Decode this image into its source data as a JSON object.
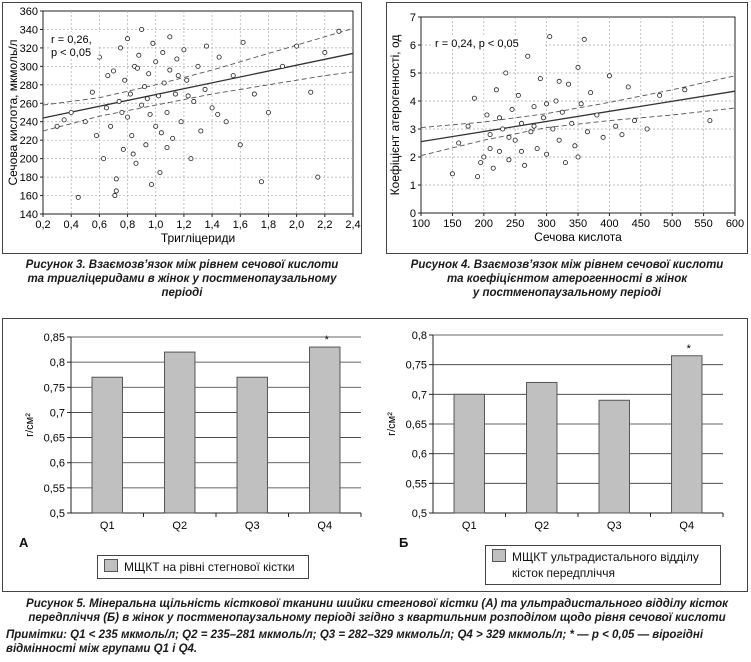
{
  "colors": {
    "bar": "#c0c0c0",
    "bar_border": "#555555",
    "grid": "#aaaaaa",
    "line": "#333333"
  },
  "chart_data": [
    {
      "id": "fig3",
      "type": "scatter",
      "title": "",
      "xlabel": "Тригліцериди",
      "ylabel": "Сечова кислота, мкмоль/л",
      "xlim": [
        0.2,
        2.4
      ],
      "ylim": [
        140,
        360
      ],
      "xticks": [
        "0,2",
        "0,4",
        "0,6",
        "0,8",
        "1,0",
        "1,2",
        "1,4",
        "1,6",
        "1,8",
        "2,0",
        "2,2",
        "2,4"
      ],
      "xtick_values": [
        0.2,
        0.4,
        0.6,
        0.8,
        1.0,
        1.2,
        1.4,
        1.6,
        1.8,
        2.0,
        2.2,
        2.4
      ],
      "yticks": [
        "140",
        "160",
        "180",
        "200",
        "220",
        "240",
        "260",
        "280",
        "300",
        "320",
        "340",
        "360"
      ],
      "ytick_values": [
        140,
        160,
        180,
        200,
        220,
        240,
        260,
        280,
        300,
        320,
        340,
        360
      ],
      "annotation": [
        "r = 0,26,",
        "p < 0,05"
      ],
      "grid": true,
      "regression": {
        "x": [
          0.2,
          2.4
        ],
        "y": [
          244,
          314
        ]
      },
      "ci_upper": {
        "x": [
          0.2,
          0.6,
          1.0,
          1.4,
          1.8,
          2.2,
          2.4
        ],
        "y": [
          258,
          266,
          280,
          296,
          314,
          332,
          341
        ]
      },
      "ci_lower": {
        "x": [
          0.2,
          0.6,
          1.0,
          1.4,
          1.8,
          2.2,
          2.4
        ],
        "y": [
          230,
          246,
          258,
          270,
          280,
          290,
          294
        ]
      },
      "points": [
        [
          0.45,
          158
        ],
        [
          0.5,
          240
        ],
        [
          0.55,
          272
        ],
        [
          0.6,
          310
        ],
        [
          0.63,
          200
        ],
        [
          0.65,
          255
        ],
        [
          0.68,
          235
        ],
        [
          0.7,
          295
        ],
        [
          0.72,
          165
        ],
        [
          0.72,
          178
        ],
        [
          0.74,
          262
        ],
        [
          0.75,
          320
        ],
        [
          0.77,
          210
        ],
        [
          0.78,
          285
        ],
        [
          0.8,
          245
        ],
        [
          0.8,
          330
        ],
        [
          0.82,
          270
        ],
        [
          0.83,
          225
        ],
        [
          0.85,
          300
        ],
        [
          0.86,
          195
        ],
        [
          0.88,
          312
        ],
        [
          0.9,
          258
        ],
        [
          0.9,
          340
        ],
        [
          0.92,
          278
        ],
        [
          0.93,
          215
        ],
        [
          0.95,
          292
        ],
        [
          0.96,
          248
        ],
        [
          0.98,
          325
        ],
        [
          1.0,
          235
        ],
        [
          1.0,
          305
        ],
        [
          1.02,
          268
        ],
        [
          1.03,
          185
        ],
        [
          1.05,
          315
        ],
        [
          1.06,
          282
        ],
        [
          1.08,
          250
        ],
        [
          1.1,
          332
        ],
        [
          1.1,
          296
        ],
        [
          1.12,
          222
        ],
        [
          1.14,
          270
        ],
        [
          1.15,
          308
        ],
        [
          1.18,
          240
        ],
        [
          1.2,
          318
        ],
        [
          1.22,
          285
        ],
        [
          1.25,
          200
        ],
        [
          1.27,
          262
        ],
        [
          1.3,
          300
        ],
        [
          1.32,
          230
        ],
        [
          1.35,
          275
        ],
        [
          1.4,
          255
        ],
        [
          1.45,
          310
        ],
        [
          1.5,
          240
        ],
        [
          1.55,
          290
        ],
        [
          1.6,
          215
        ],
        [
          1.62,
          326
        ],
        [
          1.7,
          270
        ],
        [
          1.75,
          175
        ],
        [
          1.8,
          250
        ],
        [
          1.9,
          300
        ],
        [
          2.0,
          322
        ],
        [
          2.1,
          272
        ],
        [
          2.15,
          180
        ],
        [
          2.2,
          315
        ],
        [
          2.3,
          338
        ],
        [
          0.58,
          225
        ],
        [
          0.66,
          290
        ],
        [
          0.76,
          250
        ],
        [
          0.84,
          205
        ],
        [
          0.94,
          265
        ],
        [
          1.04,
          228
        ],
        [
          1.16,
          290
        ],
        [
          0.35,
          242
        ],
        [
          0.4,
          250
        ],
        [
          0.3,
          235
        ],
        [
          1.36,
          322
        ],
        [
          1.44,
          248
        ],
        [
          0.97,
          172
        ],
        [
          0.71,
          160
        ],
        [
          1.08,
          212
        ],
        [
          0.87,
          298
        ],
        [
          1.23,
          268
        ]
      ]
    },
    {
      "id": "fig4",
      "type": "scatter",
      "title": "",
      "xlabel": "Сечова кислота",
      "ylabel": "Коефіцієнт атерогенності, од",
      "xlim": [
        100,
        600
      ],
      "ylim": [
        0,
        7
      ],
      "xticks": [
        "100",
        "150",
        "200",
        "250",
        "300",
        "350",
        "400",
        "450",
        "500",
        "550",
        "600"
      ],
      "xtick_values": [
        100,
        150,
        200,
        250,
        300,
        350,
        400,
        450,
        500,
        550,
        600
      ],
      "yticks": [
        "0",
        "1",
        "2",
        "3",
        "4",
        "5",
        "6",
        "7"
      ],
      "ytick_values": [
        0,
        1,
        2,
        3,
        4,
        5,
        6,
        7
      ],
      "annotation": [
        "r = 0,24, p < 0,05"
      ],
      "grid": true,
      "regression": {
        "x": [
          100,
          600
        ],
        "y": [
          2.55,
          4.35
        ]
      },
      "ci_upper": {
        "x": [
          100,
          200,
          300,
          400,
          500,
          600
        ],
        "y": [
          3.05,
          3.25,
          3.55,
          3.95,
          4.4,
          4.9
        ]
      },
      "ci_lower": {
        "x": [
          100,
          200,
          300,
          400,
          500,
          600
        ],
        "y": [
          2.05,
          2.6,
          3.05,
          3.3,
          3.5,
          3.75
        ]
      },
      "points": [
        [
          150,
          1.4
        ],
        [
          160,
          2.5
        ],
        [
          175,
          3.1
        ],
        [
          185,
          4.1
        ],
        [
          190,
          1.3
        ],
        [
          200,
          2.0
        ],
        [
          205,
          3.5
        ],
        [
          210,
          2.8
        ],
        [
          215,
          1.6
        ],
        [
          220,
          4.4
        ],
        [
          225,
          2.2
        ],
        [
          230,
          3.0
        ],
        [
          235,
          5.0
        ],
        [
          240,
          1.9
        ],
        [
          245,
          3.7
        ],
        [
          250,
          2.6
        ],
        [
          255,
          4.2
        ],
        [
          260,
          3.2
        ],
        [
          265,
          1.7
        ],
        [
          270,
          5.6
        ],
        [
          275,
          2.9
        ],
        [
          280,
          3.8
        ],
        [
          285,
          2.3
        ],
        [
          290,
          4.8
        ],
        [
          295,
          3.4
        ],
        [
          300,
          2.1
        ],
        [
          305,
          6.3
        ],
        [
          310,
          3.0
        ],
        [
          315,
          4.0
        ],
        [
          320,
          2.6
        ],
        [
          325,
          3.6
        ],
        [
          330,
          1.8
        ],
        [
          335,
          4.6
        ],
        [
          340,
          3.2
        ],
        [
          345,
          2.4
        ],
        [
          350,
          5.2
        ],
        [
          355,
          3.9
        ],
        [
          360,
          6.2
        ],
        [
          365,
          2.9
        ],
        [
          370,
          4.3
        ],
        [
          380,
          3.5
        ],
        [
          390,
          2.7
        ],
        [
          400,
          4.9
        ],
        [
          410,
          3.1
        ],
        [
          420,
          2.8
        ],
        [
          430,
          4.5
        ],
        [
          440,
          3.3
        ],
        [
          460,
          3.0
        ],
        [
          480,
          4.2
        ],
        [
          520,
          4.4
        ],
        [
          560,
          3.3
        ],
        [
          240,
          2.7
        ],
        [
          260,
          2.2
        ],
        [
          280,
          3.1
        ],
        [
          300,
          3.9
        ],
        [
          320,
          4.7
        ],
        [
          225,
          3.4
        ],
        [
          210,
          2.3
        ],
        [
          195,
          1.8
        ],
        [
          350,
          2.0
        ]
      ]
    },
    {
      "id": "fig5a",
      "type": "bar",
      "panel_label": "А",
      "ylabel": "г/см²",
      "categories": [
        "Q1",
        "Q2",
        "Q3",
        "Q4"
      ],
      "values": [
        0.77,
        0.82,
        0.77,
        0.83
      ],
      "ylim": [
        0.5,
        0.85
      ],
      "yticks": [
        "0,5",
        "0,55",
        "0,6",
        "0,65",
        "0,7",
        "0,75",
        "0,8",
        "0,85"
      ],
      "ytick_values": [
        0.5,
        0.55,
        0.6,
        0.65,
        0.7,
        0.75,
        0.8,
        0.85
      ],
      "significance": [
        "",
        "",
        "",
        "*"
      ],
      "legend": [
        "МЩКТ на рівні стегнової кістки"
      ],
      "grid": true
    },
    {
      "id": "fig5b",
      "type": "bar",
      "panel_label": "Б",
      "ylabel": "г/см²",
      "categories": [
        "Q1",
        "Q2",
        "Q3",
        "Q4"
      ],
      "values": [
        0.7,
        0.72,
        0.69,
        0.765
      ],
      "ylim": [
        0.5,
        0.8
      ],
      "yticks": [
        "0,5",
        "0,55",
        "0,6",
        "0,65",
        "0,7",
        "0,75",
        "0,8"
      ],
      "ytick_values": [
        0.5,
        0.55,
        0.6,
        0.65,
        0.7,
        0.75,
        0.8
      ],
      "significance": [
        "",
        "",
        "",
        "*"
      ],
      "legend": [
        "МЩКТ ультрадистального відділу",
        "кісток передпліччя"
      ],
      "grid": true
    }
  ],
  "captions": {
    "fig3": [
      "Рисунок 3. Взаємозв’язок між рівнем сечової кислоти",
      "та тригліцеридами в жінок у постменопаузальному",
      "періоді"
    ],
    "fig4": [
      "Рисунок 4. Взаємозв’язок між рівнем сечової кислоти",
      "та коефіцієнтом атерогенності в жінок",
      "у постменопаузальному періоді"
    ],
    "fig5": [
      "Рисунок 5. Мінеральна щільність кісткової тканини шийки стегнової кістки (А) та ультрадистального відділу кісток",
      "передпліччя (Б) в жінок у постменопаузальному періоді згідно з квартильним розподілом щодо рівня сечової кислоти"
    ],
    "notes": [
      "Примітки: Q1 < 235 мкмоль/л; Q2 = 235–281 мкмоль/л; Q3 = 282–329 мкмоль/л; Q4 > 329 мкмоль/л; * — p < 0,05 — вірогідні",
      "відмінності між групами Q1 і Q4."
    ]
  }
}
